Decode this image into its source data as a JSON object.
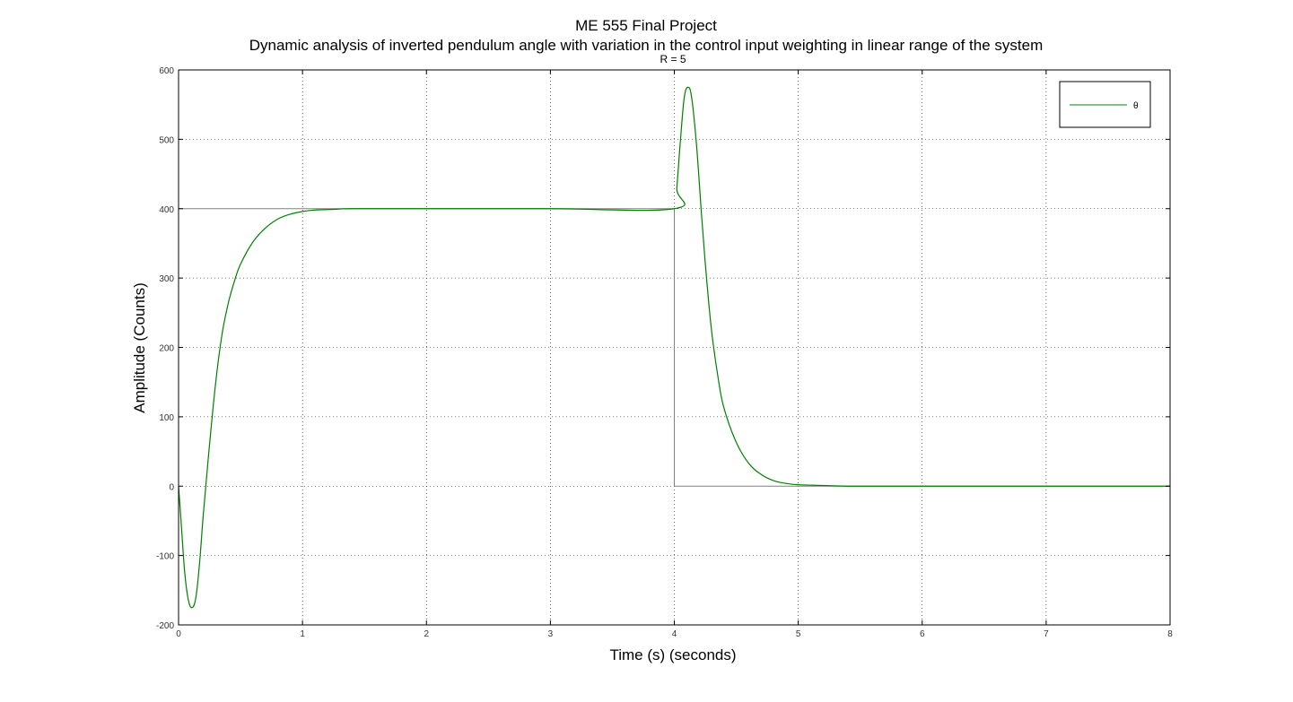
{
  "chart_data": {
    "type": "line",
    "title": "ME 555 Final Project",
    "title_line2": "Dynamic analysis of inverted pendulum angle with variation in the control input weighting in linear range of the system",
    "subtitle": "R = 5",
    "xlabel": "Time (s) (seconds)",
    "ylabel": "Amplitude (Counts)",
    "xlim": [
      0,
      8
    ],
    "ylim": [
      -200,
      600
    ],
    "xticks": [
      0,
      1,
      2,
      3,
      4,
      5,
      6,
      7,
      8
    ],
    "yticks": [
      -200,
      -100,
      0,
      100,
      200,
      300,
      400,
      500,
      600
    ],
    "grid": true,
    "legend_position": "top-right",
    "reference_input": {
      "color": "#808080",
      "points": [
        [
          0,
          0
        ],
        [
          0,
          400
        ],
        [
          4,
          400
        ],
        [
          4,
          0
        ],
        [
          8,
          0
        ]
      ]
    },
    "series": [
      {
        "name": "θ",
        "color": "#008000",
        "points": [
          [
            0,
            0
          ],
          [
            0.02,
            -50
          ],
          [
            0.05,
            -125
          ],
          [
            0.08,
            -165
          ],
          [
            0.11,
            -175
          ],
          [
            0.14,
            -160
          ],
          [
            0.17,
            -110
          ],
          [
            0.2,
            -40
          ],
          [
            0.25,
            60
          ],
          [
            0.3,
            150
          ],
          [
            0.35,
            218
          ],
          [
            0.4,
            263
          ],
          [
            0.45,
            295
          ],
          [
            0.5,
            320
          ],
          [
            0.6,
            352
          ],
          [
            0.7,
            372
          ],
          [
            0.8,
            385
          ],
          [
            0.9,
            392
          ],
          [
            1.0,
            396
          ],
          [
            1.1,
            398
          ],
          [
            1.25,
            399
          ],
          [
            1.4,
            400
          ],
          [
            2,
            400
          ],
          [
            3,
            400
          ],
          [
            4,
            400
          ],
          [
            4.02,
            430
          ],
          [
            4.05,
            500
          ],
          [
            4.08,
            560
          ],
          [
            4.11,
            575
          ],
          [
            4.14,
            560
          ],
          [
            4.18,
            490
          ],
          [
            4.22,
            390
          ],
          [
            4.26,
            300
          ],
          [
            4.3,
            225
          ],
          [
            4.35,
            160
          ],
          [
            4.4,
            113
          ],
          [
            4.5,
            63
          ],
          [
            4.6,
            33
          ],
          [
            4.7,
            17
          ],
          [
            4.8,
            8
          ],
          [
            4.9,
            4
          ],
          [
            5,
            2
          ],
          [
            5.2,
            1
          ],
          [
            5.4,
            0
          ],
          [
            6,
            0
          ],
          [
            7,
            0
          ],
          [
            8,
            0
          ]
        ]
      }
    ]
  }
}
